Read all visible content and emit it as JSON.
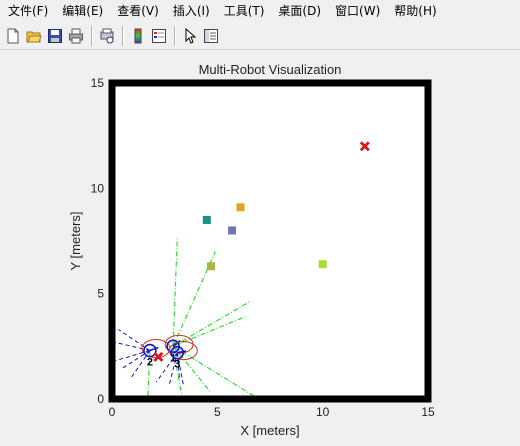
{
  "menu": {
    "items": [
      "文件(F)",
      "编辑(E)",
      "查看(V)",
      "插入(I)",
      "工具(T)",
      "桌面(D)",
      "窗口(W)",
      "帮助(H)"
    ]
  },
  "toolbar": {
    "icons": [
      "new-file-icon",
      "open-folder-icon",
      "save-icon",
      "print-icon",
      "print-preview-icon",
      "colorbar-icon",
      "legend-icon",
      "pointer-icon",
      "property-editor-icon"
    ]
  },
  "chart_data": {
    "type": "scatter",
    "title": "Multi-Robot Visualization",
    "xlabel": "X [meters]",
    "ylabel": "Y [meters]",
    "xlim": [
      0,
      15
    ],
    "ylim": [
      0,
      15
    ],
    "xticks": [
      "0",
      "5",
      "10",
      "15"
    ],
    "yticks": [
      "0",
      "5",
      "10",
      "15"
    ],
    "grid": false,
    "colors": {
      "target": "#d7191c",
      "robot": "#1515c8",
      "sensor": "#33dd33",
      "orbit": "#c0392b"
    },
    "objects": [
      {
        "x": 4.5,
        "y": 8.5,
        "color": "#1a9080"
      },
      {
        "x": 6.1,
        "y": 9.1,
        "color": "#e3a523"
      },
      {
        "x": 5.7,
        "y": 8.0,
        "color": "#6f74b3"
      },
      {
        "x": 4.7,
        "y": 6.3,
        "color": "#b1b044"
      },
      {
        "x": 10.0,
        "y": 6.4,
        "color": "#a8dc2e"
      }
    ],
    "targets": [
      {
        "x": 12.0,
        "y": 12.0
      },
      {
        "x": 2.2,
        "y": 2.0
      }
    ],
    "robots": [
      {
        "x": 1.8,
        "y": 2.3,
        "heading": 20,
        "label": "2"
      },
      {
        "x": 2.9,
        "y": 2.5,
        "heading": 40,
        "label": "1"
      },
      {
        "x": 3.1,
        "y": 2.2,
        "heading": 10,
        "label": "3"
      }
    ],
    "sensor_rays": [
      {
        "from": [
          2.9,
          2.5
        ],
        "to": [
          3.1,
          7.7
        ]
      },
      {
        "from": [
          2.9,
          2.5
        ],
        "to": [
          4.9,
          7.0
        ]
      },
      {
        "from": [
          2.9,
          2.5
        ],
        "to": [
          6.5,
          4.6
        ]
      },
      {
        "from": [
          2.9,
          2.5
        ],
        "to": [
          6.3,
          3.9
        ]
      },
      {
        "from": [
          2.9,
          2.5
        ],
        "to": [
          3.3,
          0.2
        ]
      },
      {
        "from": [
          2.9,
          2.5
        ],
        "to": [
          6.8,
          0.1
        ]
      },
      {
        "from": [
          2.9,
          2.5
        ],
        "to": [
          4.7,
          0.3
        ]
      },
      {
        "from": [
          1.8,
          2.3
        ],
        "to": [
          1.7,
          0.1
        ]
      }
    ],
    "robot_rays": [
      {
        "from": [
          1.8,
          2.3
        ],
        "to": [
          0.3,
          3.3
        ]
      },
      {
        "from": [
          1.8,
          2.3
        ],
        "to": [
          0.1,
          2.7
        ]
      },
      {
        "from": [
          1.8,
          2.3
        ],
        "to": [
          0.1,
          1.8
        ]
      },
      {
        "from": [
          1.8,
          2.3
        ],
        "to": [
          0.4,
          1.4
        ]
      },
      {
        "from": [
          1.8,
          2.3
        ],
        "to": [
          0.9,
          1.0
        ]
      },
      {
        "from": [
          3.1,
          2.2
        ],
        "to": [
          3.4,
          0.6
        ]
      },
      {
        "from": [
          3.1,
          2.2
        ],
        "to": [
          2.7,
          0.6
        ]
      },
      {
        "from": [
          3.1,
          2.2
        ],
        "to": [
          2.1,
          0.8
        ]
      },
      {
        "from": [
          3.1,
          2.2
        ],
        "to": [
          3.2,
          1.0
        ]
      }
    ]
  }
}
